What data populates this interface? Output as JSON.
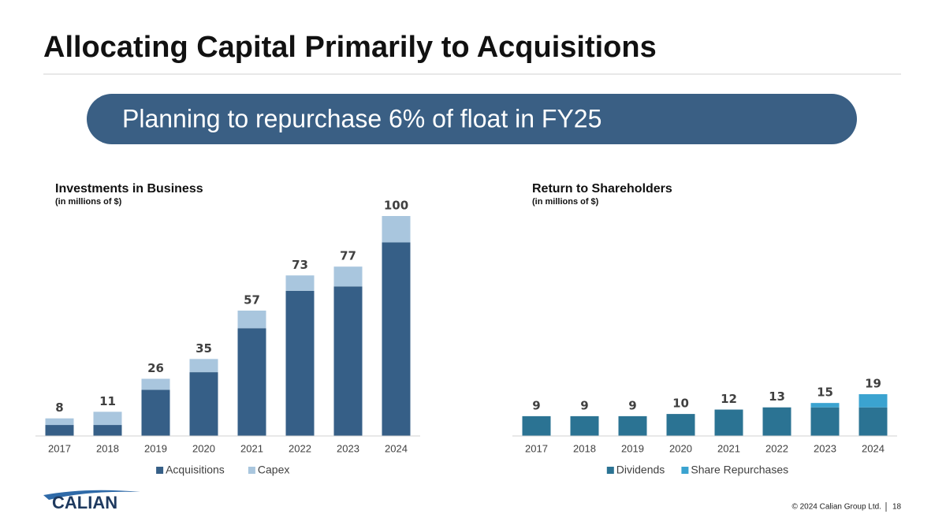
{
  "title": "Allocating Capital Primarily to Acquisitions",
  "banner": "Planning to repurchase 6% of float in FY25",
  "logo": "CALIAN",
  "copyright": "© 2024 Calian Group Ltd.",
  "page_number": "18",
  "chart_data": [
    {
      "type": "bar",
      "stacked": true,
      "title": "Investments in Business",
      "subtitle": "(in millions of $)",
      "categories": [
        "2017",
        "2018",
        "2019",
        "2020",
        "2021",
        "2022",
        "2023",
        "2024"
      ],
      "series": [
        {
          "name": "Acquisitions",
          "color": "#365f87",
          "values": [
            5,
            5,
            21,
            29,
            49,
            66,
            68,
            88
          ]
        },
        {
          "name": "Capex",
          "color": "#a9c6de",
          "values": [
            3,
            6,
            5,
            6,
            8,
            7,
            9,
            12
          ]
        }
      ],
      "totals": [
        8,
        11,
        26,
        35,
        57,
        73,
        77,
        100
      ],
      "ylim": [
        0,
        100
      ]
    },
    {
      "type": "bar",
      "stacked": true,
      "title": "Return to Shareholders",
      "subtitle": "(in millions of $)",
      "categories": [
        "2017",
        "2018",
        "2019",
        "2020",
        "2021",
        "2022",
        "2023",
        "2024"
      ],
      "series": [
        {
          "name": "Dividends",
          "color": "#2b7393",
          "values": [
            9,
            9,
            9,
            10,
            12,
            13,
            13,
            13
          ]
        },
        {
          "name": "Share Repurchases",
          "color": "#3ba3d0",
          "values": [
            0,
            0,
            0,
            0,
            0,
            0,
            2,
            6
          ]
        }
      ],
      "totals": [
        9,
        9,
        9,
        10,
        12,
        13,
        15,
        19
      ],
      "ylim": [
        0,
        100
      ]
    }
  ]
}
